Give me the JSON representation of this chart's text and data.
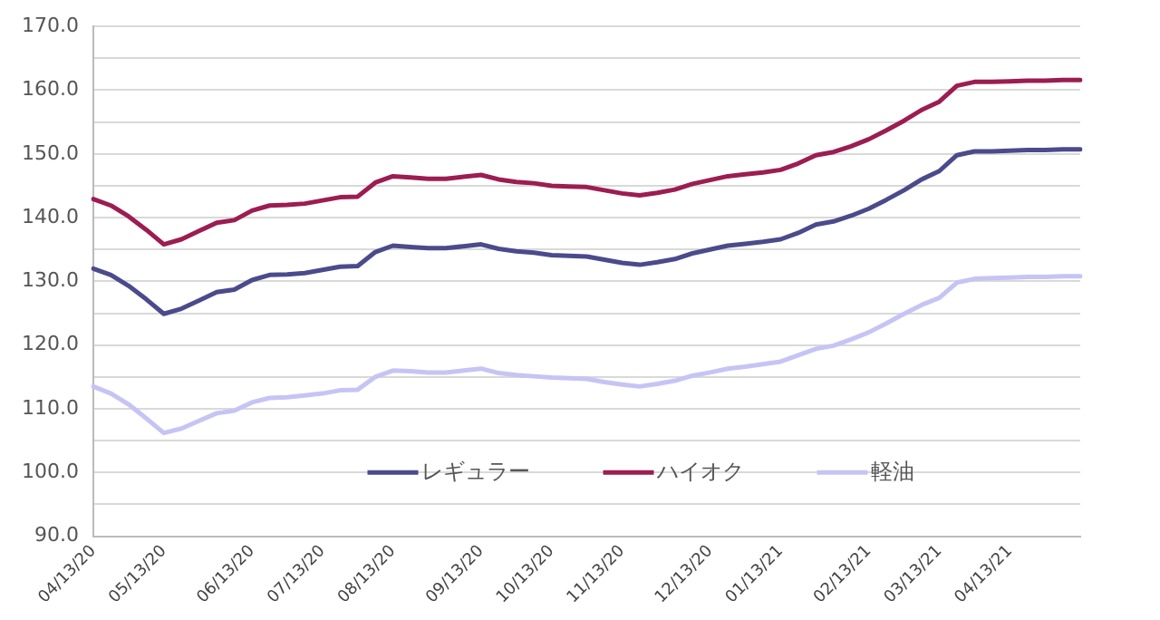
{
  "chart_data": {
    "type": "line",
    "categories": [
      "04/13/20",
      null,
      null,
      null,
      "05/13/20",
      null,
      null,
      null,
      null,
      "06/13/20",
      null,
      null,
      null,
      "07/13/20",
      null,
      null,
      null,
      "08/13/20",
      null,
      null,
      null,
      null,
      "09/13/20",
      null,
      null,
      null,
      "10/13/20",
      null,
      null,
      null,
      "11/13/20",
      null,
      null,
      null,
      null,
      "12/13/20",
      null,
      null,
      null,
      "01/13/21",
      null,
      null,
      null,
      null,
      "02/13/21",
      null,
      null,
      null,
      "03/13/21",
      null,
      null,
      null,
      "04/13/21",
      null,
      null,
      null,
      null
    ],
    "series": [
      {
        "name": "レギュラー",
        "color": "#4b4a8c",
        "values": [
          132.0,
          131.0,
          129.3,
          127.2,
          124.9,
          125.7,
          127.0,
          128.3,
          128.7,
          130.2,
          131.0,
          131.1,
          131.3,
          131.8,
          132.3,
          132.4,
          134.6,
          135.6,
          135.4,
          135.2,
          135.2,
          135.5,
          135.8,
          135.1,
          134.7,
          134.5,
          134.1,
          134.0,
          133.9,
          133.4,
          132.9,
          132.6,
          133.0,
          133.5,
          134.4,
          135.0,
          135.6,
          135.9,
          136.2,
          136.6,
          137.6,
          138.9,
          139.4,
          140.3,
          141.4,
          142.8,
          144.3,
          146.0,
          147.3,
          149.8,
          150.4,
          150.4,
          150.5,
          150.6,
          150.6,
          150.7,
          150.7
        ]
      },
      {
        "name": "ハイオク",
        "color": "#9c1d52",
        "values": [
          142.9,
          141.9,
          140.2,
          138.1,
          135.8,
          136.6,
          137.9,
          139.2,
          139.6,
          141.1,
          141.9,
          142.0,
          142.2,
          142.7,
          143.2,
          143.3,
          145.5,
          146.5,
          146.3,
          146.1,
          146.1,
          146.4,
          146.7,
          146.0,
          145.6,
          145.4,
          145.0,
          144.9,
          144.8,
          144.3,
          143.8,
          143.5,
          143.9,
          144.4,
          145.3,
          145.9,
          146.5,
          146.8,
          147.1,
          147.5,
          148.5,
          149.8,
          150.3,
          151.2,
          152.3,
          153.7,
          155.2,
          156.9,
          158.2,
          160.7,
          161.3,
          161.3,
          161.4,
          161.5,
          161.5,
          161.6,
          161.6
        ]
      },
      {
        "name": "軽油",
        "color": "#c5c4f5",
        "values": [
          113.5,
          112.4,
          110.7,
          108.5,
          106.2,
          106.9,
          108.1,
          109.3,
          109.7,
          111.0,
          111.7,
          111.8,
          112.1,
          112.4,
          112.9,
          113.0,
          115.0,
          116.0,
          115.9,
          115.7,
          115.7,
          116.0,
          116.3,
          115.6,
          115.3,
          115.1,
          114.9,
          114.8,
          114.7,
          114.2,
          113.8,
          113.5,
          113.9,
          114.4,
          115.2,
          115.7,
          116.3,
          116.6,
          117.0,
          117.4,
          118.4,
          119.4,
          119.9,
          120.9,
          122.0,
          123.4,
          124.9,
          126.3,
          127.4,
          129.8,
          130.4,
          130.5,
          130.6,
          130.7,
          130.7,
          130.8,
          130.8
        ]
      }
    ],
    "ylim": [
      90,
      170
    ],
    "yticks": [
      {
        "value": 90,
        "label": "90.0"
      },
      {
        "value": 95,
        "label": null
      },
      {
        "value": 100,
        "label": "100.0"
      },
      {
        "value": 105,
        "label": null
      },
      {
        "value": 110,
        "label": "110.0"
      },
      {
        "value": 115,
        "label": null
      },
      {
        "value": 120,
        "label": "120.0"
      },
      {
        "value": 125,
        "label": null
      },
      {
        "value": 130,
        "label": "130.0"
      },
      {
        "value": 135,
        "label": null
      },
      {
        "value": 140,
        "label": "140.0"
      },
      {
        "value": 145,
        "label": null
      },
      {
        "value": 150,
        "label": "150.0"
      },
      {
        "value": 155,
        "label": null
      },
      {
        "value": 160,
        "label": "160.0"
      },
      {
        "value": 165,
        "label": null
      },
      {
        "value": 170,
        "label": "170.0"
      }
    ],
    "grid": "y",
    "legend": "bottom",
    "marker": "none",
    "line_style": "solid"
  }
}
